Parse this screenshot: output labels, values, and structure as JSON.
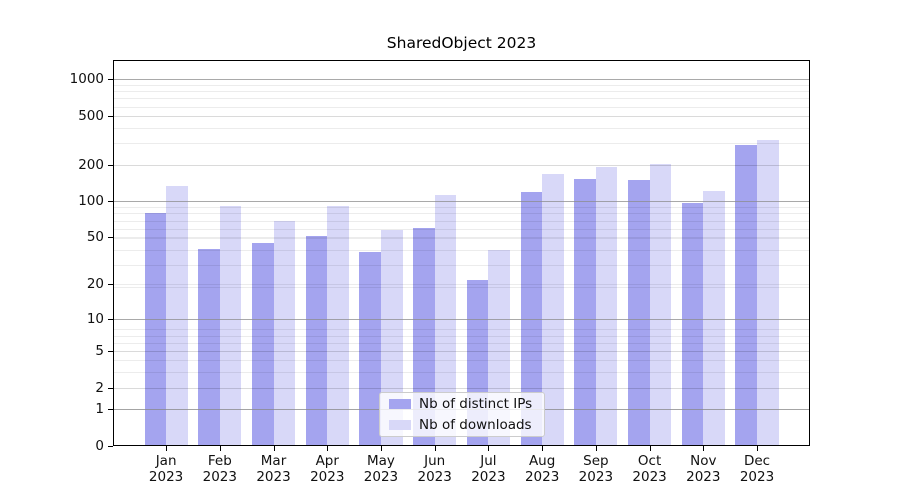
{
  "title": "SharedObject 2023",
  "chart_data": {
    "type": "bar",
    "title": "SharedObject 2023",
    "categories": [
      "Jan 2023",
      "Feb 2023",
      "Mar 2023",
      "Apr 2023",
      "May 2023",
      "Jun 2023",
      "Jul 2023",
      "Aug 2023",
      "Sep 2023",
      "Oct 2023",
      "Nov 2023",
      "Dec 2023"
    ],
    "series": [
      {
        "name": "Nb of distinct IPs",
        "color": "#a4a4ef",
        "values": [
          80,
          40,
          45,
          51,
          38,
          60,
          22,
          119,
          151,
          149,
          97,
          290
        ]
      },
      {
        "name": "Nb of downloads",
        "color": "#d8d8f8",
        "values": [
          133,
          91,
          69,
          91,
          57,
          113,
          39,
          166,
          190,
          201,
          122,
          321
        ]
      }
    ],
    "yscale": "log10(value+1)",
    "yticks": [
      0,
      1,
      2,
      5,
      10,
      20,
      50,
      100,
      200,
      500,
      1000
    ],
    "major_grid_values": [
      1,
      10,
      100,
      1000
    ],
    "ylim": [
      0,
      1450
    ],
    "xlabel": "",
    "ylabel": "",
    "grid": true,
    "legend_position": "lower center (inside axes)"
  },
  "colors": {
    "background": "#ffffff",
    "axis": "#000000",
    "major_grid": "#8c8c8c",
    "minor_grid": "#e8e8e8",
    "bar_distinct_ips": "#a4a4ef",
    "bar_downloads": "#d8d8f8",
    "legend_background": "#ffffff",
    "legend_border": "#cccccc"
  }
}
